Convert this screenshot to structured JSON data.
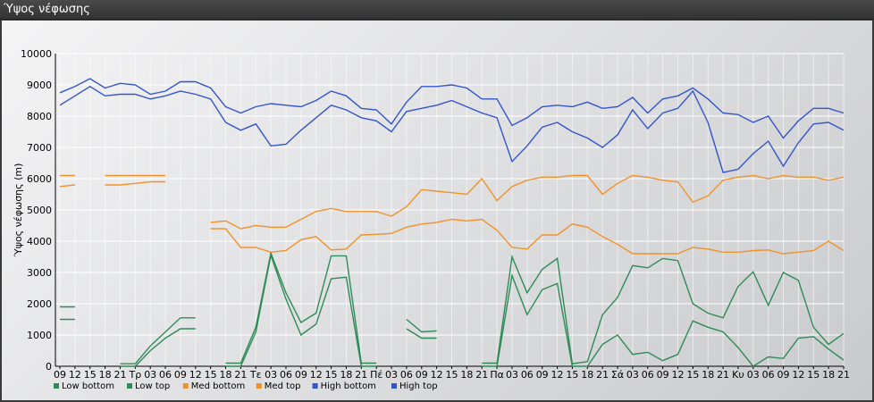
{
  "window": {
    "title": "Ύψος νέφωσης"
  },
  "chart_data": {
    "type": "line",
    "title": "",
    "xlabel": "",
    "ylabel": "Ύψος νέφωσης (m)",
    "ylim": [
      0,
      10000
    ],
    "yticks": [
      0,
      1000,
      2000,
      3000,
      4000,
      5000,
      6000,
      7000,
      8000,
      9000,
      10000
    ],
    "grid": true,
    "legend_position": "bottom-left",
    "categories": [
      "09",
      "12",
      "15",
      "18",
      "21",
      "Τρ",
      "03",
      "06",
      "09",
      "12",
      "15",
      "18",
      "21",
      "Τε",
      "03",
      "06",
      "09",
      "12",
      "15",
      "18",
      "21",
      "Πέ",
      "03",
      "06",
      "09",
      "12",
      "15",
      "18",
      "21",
      "Πα",
      "03",
      "06",
      "09",
      "12",
      "15",
      "18",
      "21",
      "Σά",
      "03",
      "06",
      "09",
      "12",
      "15",
      "18",
      "21",
      "Κυ",
      "03",
      "06",
      "09",
      "12",
      "15",
      "18",
      "21"
    ],
    "series": [
      {
        "name": "Low bottom",
        "color": "#2e8b57",
        "values": [
          1500,
          1500,
          null,
          null,
          0,
          0,
          500,
          900,
          1200,
          1200,
          null,
          0,
          0,
          1100,
          3550,
          2150,
          1000,
          1350,
          2800,
          2850,
          0,
          0,
          null,
          1200,
          900,
          900,
          null,
          null,
          0,
          0,
          2900,
          1650,
          2450,
          2650,
          0,
          0,
          700,
          1000,
          380,
          450,
          180,
          380,
          1450,
          1250,
          1100,
          600,
          0,
          300,
          250,
          900,
          950,
          550,
          200
        ]
      },
      {
        "name": "Low top",
        "color": "#2e8b57",
        "values": [
          1900,
          1900,
          null,
          null,
          80,
          80,
          650,
          1100,
          1550,
          1550,
          null,
          100,
          100,
          1250,
          3620,
          2350,
          1400,
          1700,
          3530,
          3530,
          100,
          100,
          null,
          1500,
          1100,
          1130,
          null,
          null,
          100,
          100,
          3500,
          2350,
          3100,
          3450,
          80,
          150,
          1650,
          2200,
          3220,
          3150,
          3450,
          3380,
          2000,
          1700,
          1550,
          2550,
          3020,
          1950,
          3000,
          2750,
          1250,
          700,
          1050
        ]
      },
      {
        "name": "Med bottom",
        "color": "#f0922b",
        "values": [
          5750,
          5800,
          null,
          5800,
          5800,
          5850,
          5900,
          5900,
          null,
          null,
          4400,
          4400,
          3800,
          3800,
          3650,
          3700,
          4050,
          4150,
          3720,
          3750,
          4200,
          4220,
          4250,
          4450,
          4550,
          4600,
          4700,
          4650,
          4700,
          4350,
          3800,
          3750,
          4200,
          4200,
          4550,
          4450,
          4150,
          3900,
          3600,
          3600,
          3600,
          3600,
          3800,
          3750,
          3650,
          3650,
          3700,
          3720,
          3600,
          3650,
          3700,
          4000,
          3700
        ]
      },
      {
        "name": "Med top",
        "color": "#f0922b",
        "values": [
          6100,
          6100,
          null,
          6100,
          6100,
          6100,
          6100,
          6100,
          null,
          null,
          4600,
          4650,
          4400,
          4500,
          4450,
          4450,
          4700,
          4950,
          5050,
          4950,
          4950,
          4950,
          4800,
          5100,
          5650,
          5600,
          5550,
          5500,
          6000,
          5300,
          5750,
          5950,
          6050,
          6050,
          6100,
          6100,
          5500,
          5850,
          6100,
          6050,
          5950,
          5900,
          5250,
          5450,
          5950,
          6050,
          6100,
          6000,
          6100,
          6050,
          6050,
          5950,
          6050
        ]
      },
      {
        "name": "High bottom",
        "color": "#3355cc",
        "values": [
          8350,
          8650,
          8950,
          8650,
          8700,
          8700,
          8550,
          8650,
          8800,
          8700,
          8550,
          7800,
          7550,
          7750,
          7050,
          7100,
          7550,
          7950,
          8350,
          8200,
          7950,
          7850,
          7500,
          8150,
          8250,
          8350,
          8500,
          8300,
          8100,
          7950,
          6550,
          7050,
          7650,
          7800,
          7500,
          7300,
          7000,
          7400,
          8200,
          7600,
          8100,
          8250,
          8800,
          7800,
          6200,
          6300,
          6800,
          7200,
          6400,
          7150,
          7750,
          7800,
          7550
        ]
      },
      {
        "name": "High top",
        "color": "#3355cc",
        "values": [
          8750,
          8950,
          9200,
          8900,
          9050,
          9000,
          8700,
          8800,
          9100,
          9100,
          8900,
          8300,
          8100,
          8300,
          8400,
          8350,
          8300,
          8500,
          8800,
          8650,
          8250,
          8200,
          7750,
          8450,
          8950,
          8950,
          9000,
          8900,
          8550,
          8550,
          7700,
          7950,
          8300,
          8350,
          8300,
          8450,
          8250,
          8300,
          8600,
          8100,
          8550,
          8650,
          8900,
          8550,
          8100,
          8050,
          7800,
          8000,
          7300,
          7850,
          8250,
          8250,
          8100
        ]
      }
    ]
  }
}
